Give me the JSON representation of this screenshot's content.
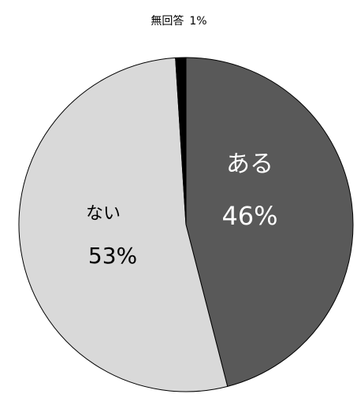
{
  "chart_data": {
    "type": "pie",
    "slices": [
      {
        "label": "ある",
        "value": 46,
        "value_label": "46%",
        "color": "#595959",
        "label_color": "#ffffff"
      },
      {
        "label": "ない",
        "value": 53,
        "value_label": "53%",
        "color": "#d9d9d9",
        "label_color": "#000000"
      },
      {
        "label": "無回答",
        "value": 1,
        "value_label": "1%",
        "color": "#000000",
        "label_color": "#000000"
      }
    ],
    "start_angle": "12 o'clock",
    "direction": "clockwise",
    "outline_color": "#000000",
    "legend": "none"
  }
}
